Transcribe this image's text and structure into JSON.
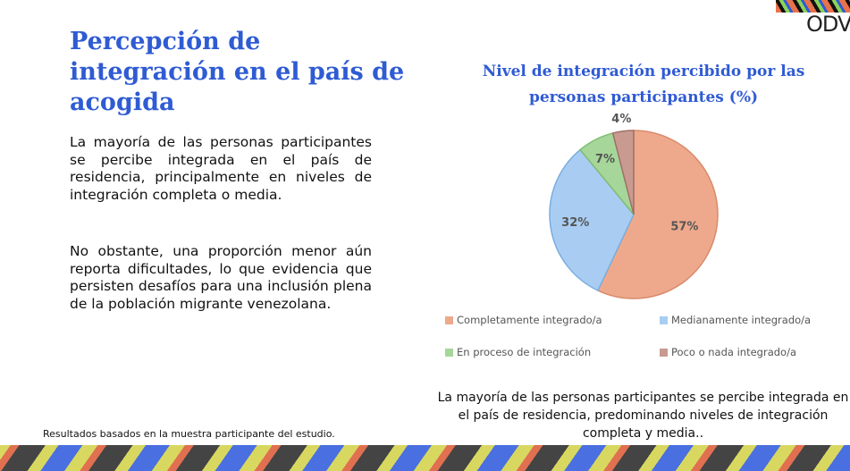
{
  "title": "Percepción de integración en el país de acogida",
  "paragraphs": [
    "La mayoría de las personas participantes se percibe integrada en el país de residencia, principalmente en niveles de integración completa o media.",
    "No obstante, una proporción menor aún reporta dificultades, lo que evidencia que persisten desafíos para una inclusión plena de la población migrante venezolana."
  ],
  "footnote": "Resultados basados en la muestra participante del estudio.",
  "logo": "ODV",
  "caption": "La mayoría de las personas participantes se percibe integrada en el país de residencia, predominando niveles de integración completa y media..",
  "chart_data": {
    "type": "pie",
    "title": "Nivel de integración percibido por las personas participantes (%)",
    "categories": [
      "Completamente integrado/a",
      "Medianamente integrado/a",
      "En proceso de integración",
      "Poco o nada integrado/a"
    ],
    "values": [
      57,
      32,
      7,
      4
    ],
    "labels": [
      "57%",
      "32%",
      "7%",
      "4%"
    ],
    "colors": [
      "#eea98c",
      "#a9cdf2",
      "#a6d69a",
      "#c89a90"
    ],
    "strokes": [
      "#d98a6a",
      "#7aaee0",
      "#7fbd70",
      "#a07068"
    ],
    "legend": "bottom"
  }
}
